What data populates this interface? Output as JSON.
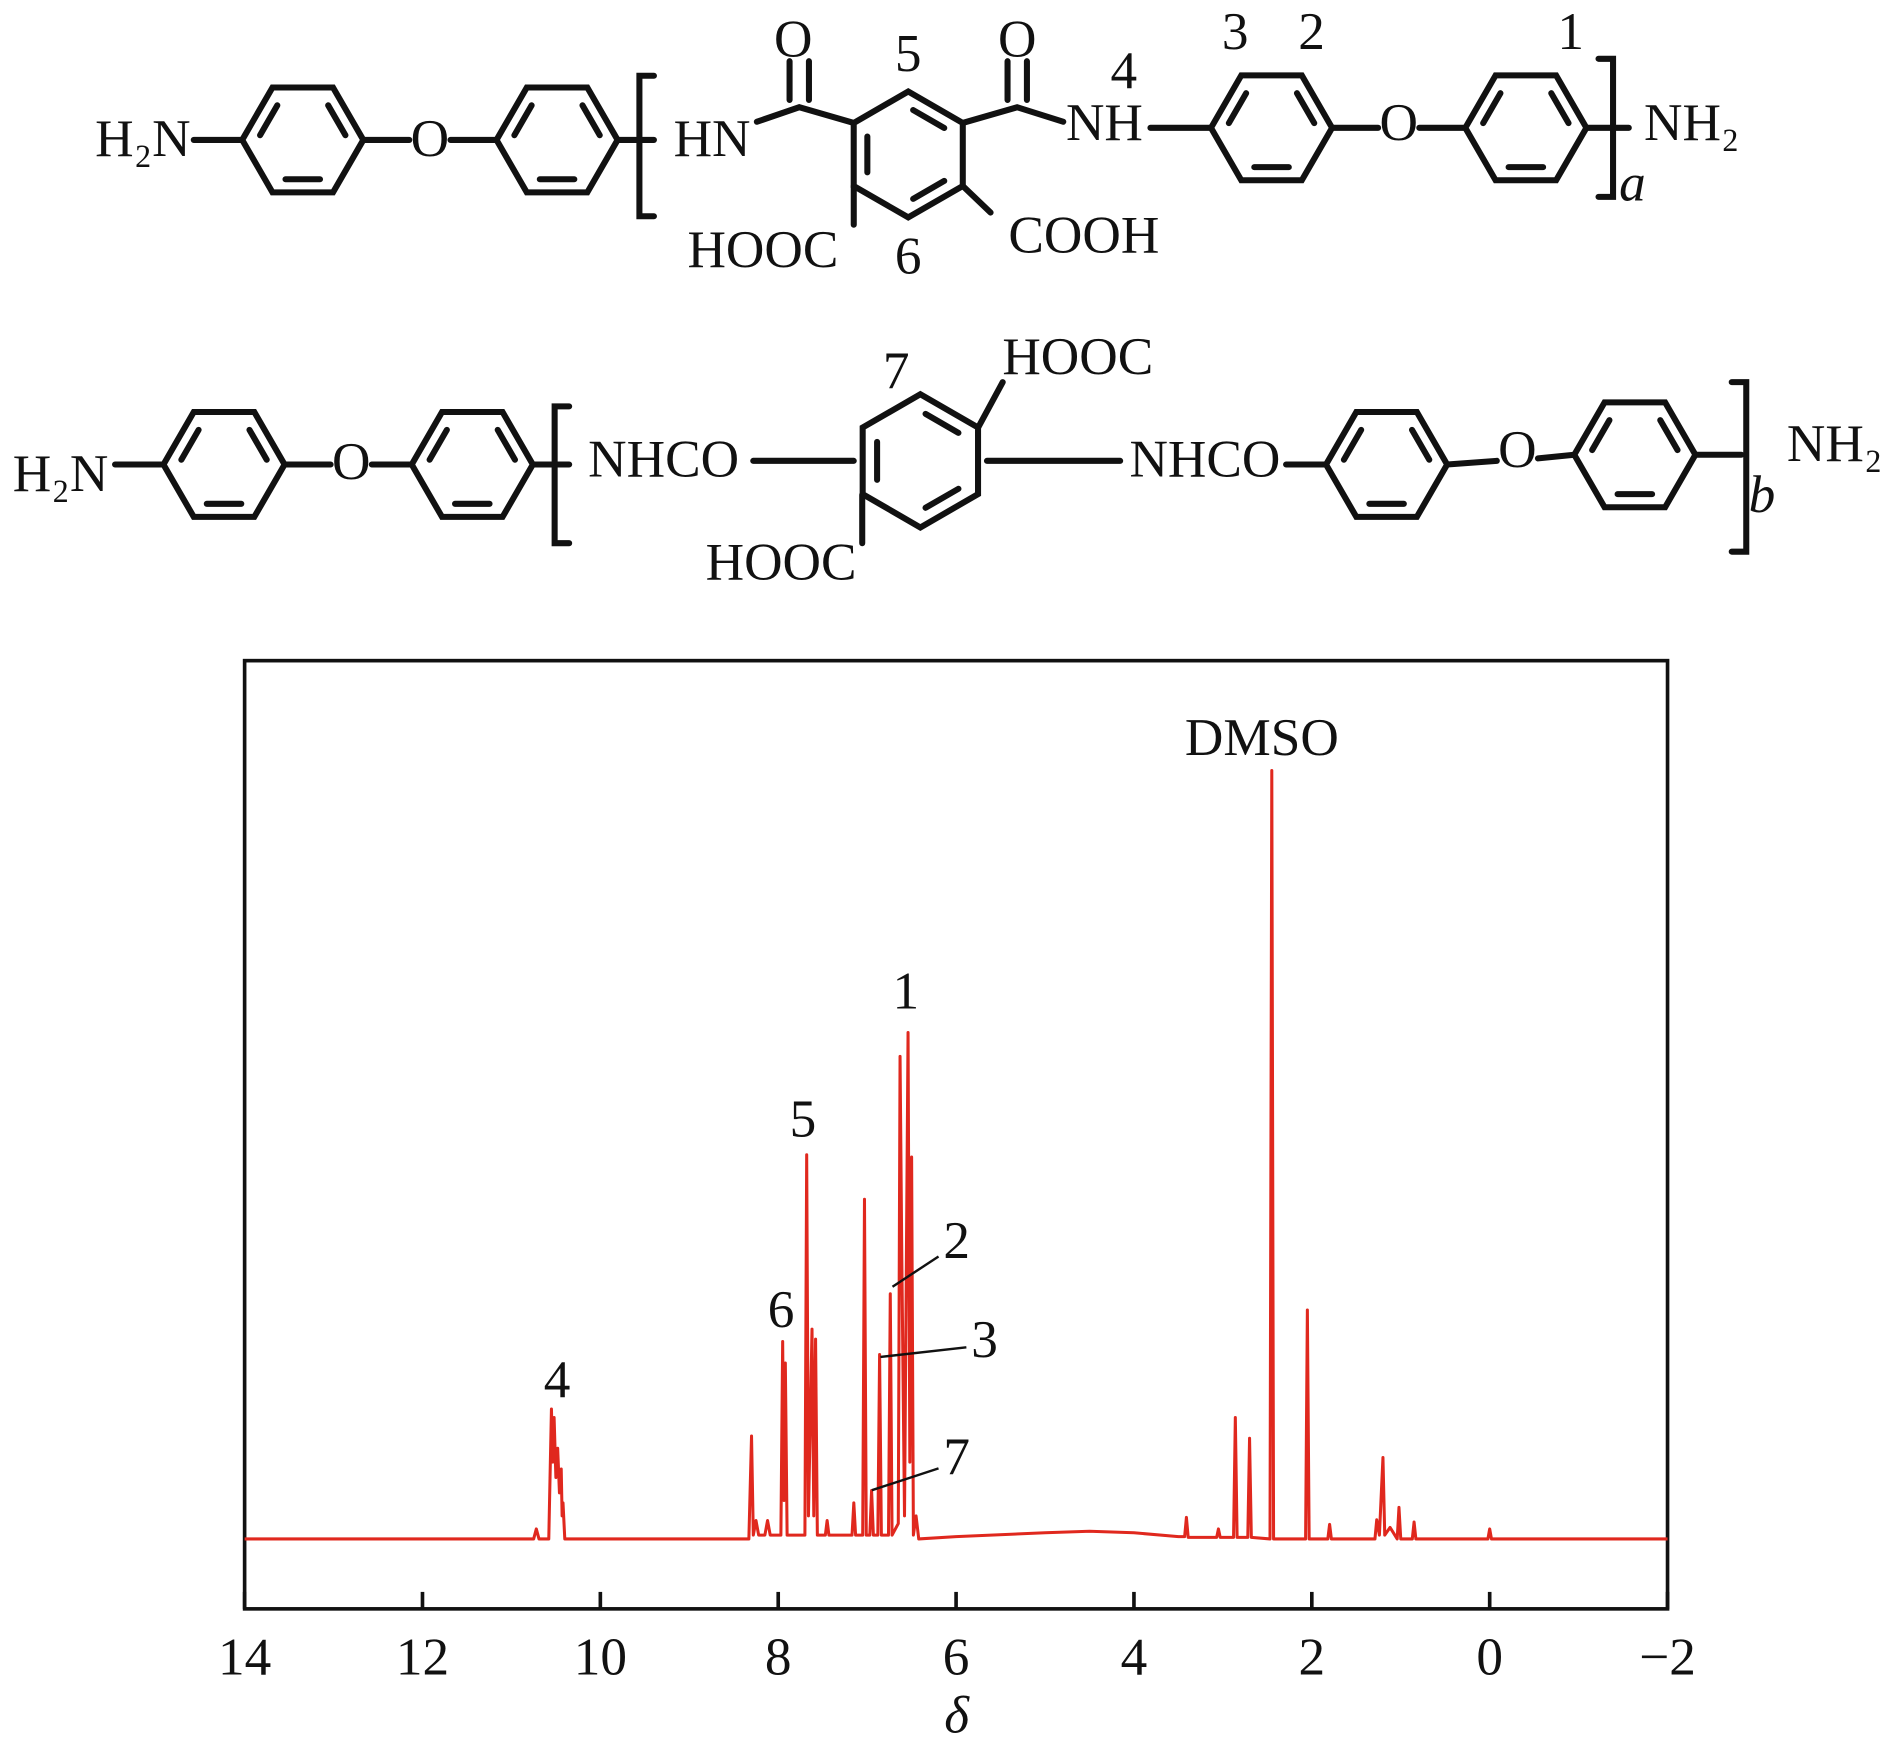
{
  "structure_a": {
    "texts": [
      "H₂N",
      "O",
      "HN",
      "O",
      "O",
      "5",
      "NH",
      "4",
      "3",
      "2",
      "O",
      "1",
      "NH₂",
      "a",
      "HOOC",
      "6",
      "COOH"
    ]
  },
  "structure_b": {
    "texts": [
      "H₂N",
      "O",
      "NHCO",
      "7",
      "HOOC",
      "NHCO",
      "O",
      "NH₂",
      "b",
      "HOOC"
    ]
  },
  "chart_data": {
    "type": "line",
    "xlabel": "δ",
    "color": "#e0281e",
    "xlim": [
      14,
      -2
    ],
    "ylim": [
      -9.1,
      114.3
    ],
    "xticks": [
      14,
      12,
      10,
      8,
      6,
      4,
      2,
      0,
      {
        "value": -2,
        "label": "−2"
      }
    ],
    "annotations": [
      "DMSO",
      "1",
      "2",
      "3",
      "4",
      "5",
      "6",
      "7"
    ],
    "x": [
      14,
      10.75,
      10.72,
      10.69,
      10.58,
      10.55,
      10.535,
      10.52,
      10.5,
      10.48,
      10.46,
      10.44,
      10.43,
      10.42,
      10.4,
      8.33,
      8.3,
      8.28,
      8.25,
      8.22,
      8.15,
      8.12,
      8.09,
      7.97,
      7.95,
      7.935,
      7.92,
      7.9,
      7.7,
      7.68,
      7.66,
      7.62,
      7.6,
      7.58,
      7.56,
      7.47,
      7.45,
      7.43,
      7.17,
      7.15,
      7.13,
      7.05,
      7.03,
      7.01,
      6.97,
      6.95,
      6.93,
      6.88,
      6.86,
      6.84,
      6.76,
      6.74,
      6.72,
      6.65,
      6.63,
      6.61,
      6.58,
      6.54,
      6.52,
      6.5,
      6.48,
      6.45,
      6.42,
      6.0,
      5,
      4.5,
      4,
      3.5,
      3.43,
      3.41,
      3.39,
      3.07,
      3.05,
      3.03,
      2.88,
      2.86,
      2.84,
      2.72,
      2.7,
      2.68,
      2.47,
      2.45,
      2.43,
      2.07,
      2.05,
      2.03,
      1.82,
      1.8,
      1.78,
      1.29,
      1.27,
      1.24,
      1.2,
      1.18,
      1.12,
      1.04,
      1.02,
      1.0,
      0.87,
      0.85,
      0.83,
      0.02,
      0.0,
      -0.02,
      -2
    ],
    "values": [
      0,
      0,
      1.3,
      0,
      0,
      16.9,
      10,
      15.8,
      8,
      11.8,
      6,
      9.1,
      3,
      4.7,
      0,
      0,
      13.4,
      0.5,
      2.4,
      0.5,
      0.5,
      2.4,
      0.5,
      0.5,
      25.7,
      5,
      22.9,
      0.5,
      0.5,
      50,
      3,
      27.3,
      3,
      26,
      0.5,
      0.5,
      2.4,
      0.5,
      0.5,
      4.7,
      0.5,
      0.5,
      44.2,
      0.5,
      0.5,
      6.3,
      0.5,
      0.5,
      24,
      0.5,
      0.5,
      31.9,
      0.5,
      2,
      62.8,
      36.3,
      3,
      65.9,
      10,
      49.7,
      0.5,
      3,
      0,
      0.3,
      0.8,
      1,
      0.8,
      0.3,
      0.3,
      2.8,
      0.2,
      0.2,
      1.3,
      0.2,
      0.2,
      15.8,
      0.2,
      0.2,
      13.1,
      0.2,
      0,
      100,
      0,
      0,
      29.8,
      0,
      0,
      1.9,
      0,
      0,
      2.5,
      0.5,
      10.6,
      0.5,
      1.5,
      0,
      4.1,
      0,
      0,
      2.2,
      0,
      0,
      1.3,
      0,
      0
    ]
  }
}
